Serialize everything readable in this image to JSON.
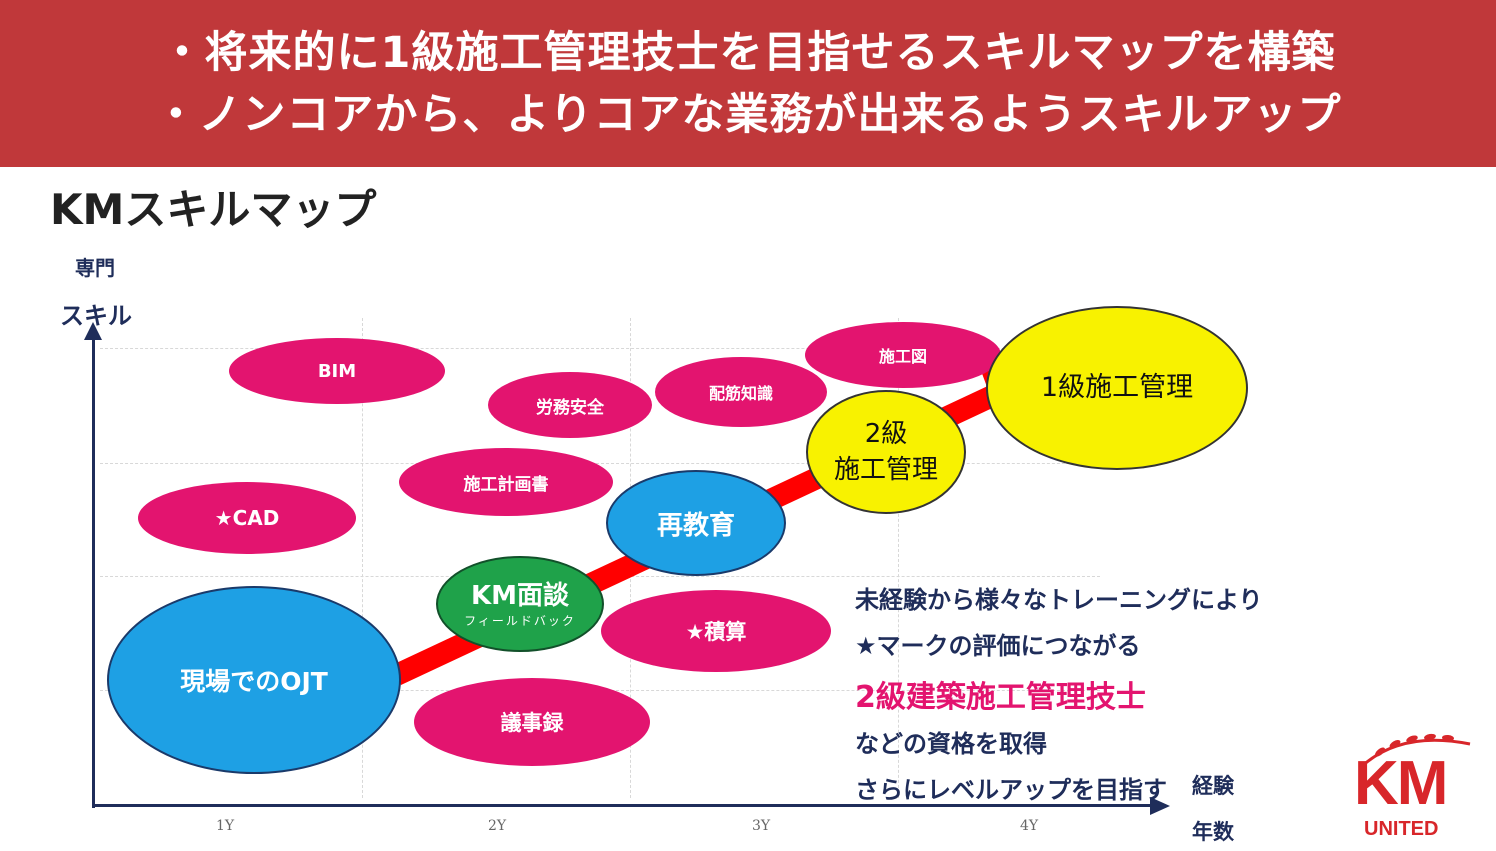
{
  "banner": {
    "line1": "・将来的に1級施工管理技士を目指せるスキルマップを構築",
    "line2": "・ノンコアから、よりコアな業務が出来るようスキルアップ"
  },
  "map_title": "KMスキルマップ",
  "axes": {
    "y_label_1": "専門",
    "y_label_2": "スキル",
    "x_label_1": "経験",
    "x_label_2": "年数",
    "ticks": [
      "1Y",
      "2Y",
      "3Y",
      "4Y"
    ]
  },
  "bubbles": {
    "bim": "BIM",
    "rodo_anzen": "労務安全",
    "haikin_chishiki": "配筋知識",
    "sekouzu": "施工図",
    "sekou_keikakusho": "施工計画書",
    "cad": "★CAD",
    "sekisan": "★積算",
    "gijiroku": "議事録",
    "ojt": "現場でのOJT",
    "km_mendan": "KM面談",
    "km_mendan_sub": "フィールドバック",
    "saikyouiku": "再教育",
    "kyu2_line1": "2級",
    "kyu2_line2": "施工管理",
    "kyu1": "1級施工管理"
  },
  "description": {
    "line1": "未経験から様々なトレーニングにより",
    "line2": "★マークの評価につながる",
    "line3": "2級建築施工管理技士",
    "line4": "などの資格を取得",
    "line5": "さらにレベルアップを目指す"
  },
  "logo": {
    "km": "KM",
    "united": "UNITED"
  },
  "colors": {
    "banner": "#c0383a",
    "pink": "#e3146f",
    "blue": "#1ea0e4",
    "green": "#1fa24a",
    "yellow": "#f8f200",
    "arrow": "#ff0000",
    "navy": "#1f2d5a"
  }
}
